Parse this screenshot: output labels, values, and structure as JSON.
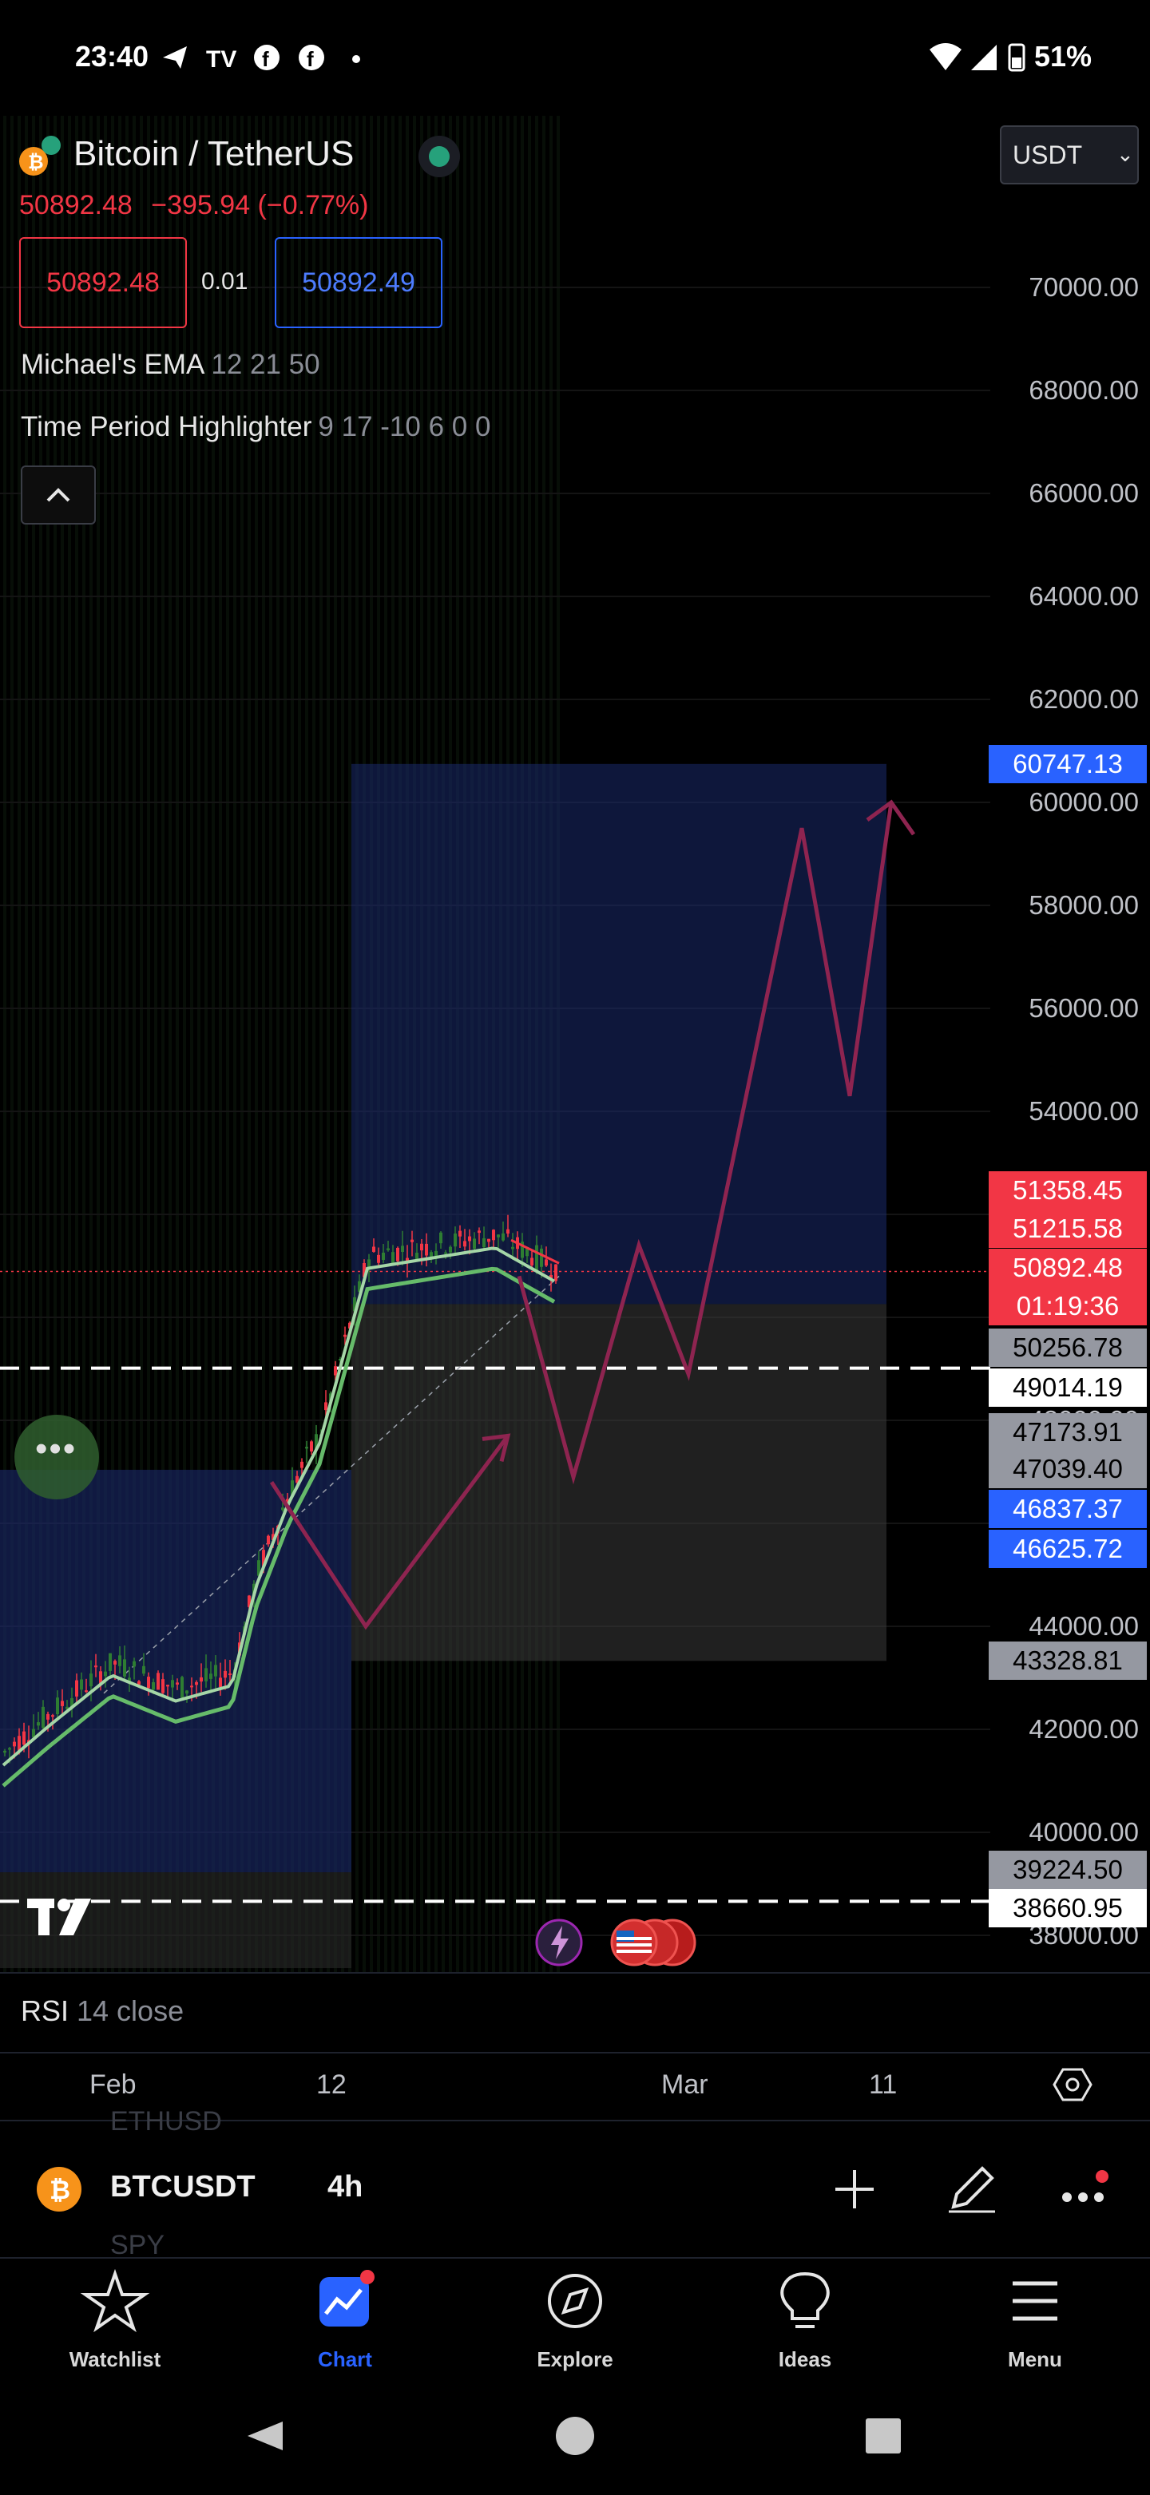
{
  "status_bar": {
    "time": "23:40",
    "battery": "51%"
  },
  "header": {
    "symbol_title": "Bitcoin / TetherUS",
    "last_price": "50892.48",
    "change": "−395.94 (−0.77%)",
    "bid": "50892.48",
    "spread": "0.01",
    "ask": "50892.49",
    "currency": "USDT"
  },
  "indicators": [
    {
      "name": "Michael's EMA",
      "params": "12 21 50"
    },
    {
      "name": "Time Period Highlighter",
      "params": "9 17 -10 6 0 0"
    }
  ],
  "price_axis": {
    "ticks": [
      "70000.00",
      "68000.00",
      "66000.00",
      "64000.00",
      "62000.00",
      "60000.00",
      "58000.00",
      "56000.00",
      "54000.00",
      "48000.00",
      "44000.00",
      "42000.00",
      "40000.00",
      "38000.00"
    ],
    "tags": [
      {
        "value": "60747.13",
        "color": "#2962ff"
      },
      {
        "value": "51358.45",
        "color": "#f23645"
      },
      {
        "value": "51215.58",
        "color": "#f23645"
      },
      {
        "value": "50892.48",
        "color": "#f23645"
      },
      {
        "value": "01:19:36",
        "color": "#f23645"
      },
      {
        "value": "50256.78",
        "color": "#b2b5be"
      },
      {
        "value": "49014.19",
        "color": "#ffffff"
      },
      {
        "value": "47173.91",
        "color": "#b2b5be"
      },
      {
        "value": "47039.40",
        "color": "#b2b5be"
      },
      {
        "value": "46837.37",
        "color": "#2962ff"
      },
      {
        "value": "46625.72",
        "color": "#2962ff"
      },
      {
        "value": "43328.81",
        "color": "#b2b5be"
      },
      {
        "value": "39224.50",
        "color": "#b2b5be"
      },
      {
        "value": "38660.95",
        "color": "#ffffff"
      }
    ]
  },
  "rsi": {
    "name": "RSI",
    "params": "14 close"
  },
  "date_axis": [
    "Feb",
    "12",
    "Mar",
    "11"
  ],
  "toolbar": {
    "symbol": "BTCUSDT",
    "interval": "4h",
    "ghost_above": "ETHUSD",
    "ghost_below": "SPY"
  },
  "nav": [
    {
      "label": "Watchlist",
      "icon": "star-icon"
    },
    {
      "label": "Chart",
      "icon": "chart-icon"
    },
    {
      "label": "Explore",
      "icon": "compass-icon"
    },
    {
      "label": "Ideas",
      "icon": "lightbulb-icon"
    },
    {
      "label": "Menu",
      "icon": "menu-icon"
    }
  ],
  "colors": {
    "up": "#2e7d32",
    "down": "#f23645",
    "accent": "#2962ff",
    "ema_fast": "#a5d6a7",
    "ema_slow": "#66bb6a",
    "projection": "#8e2450"
  }
}
